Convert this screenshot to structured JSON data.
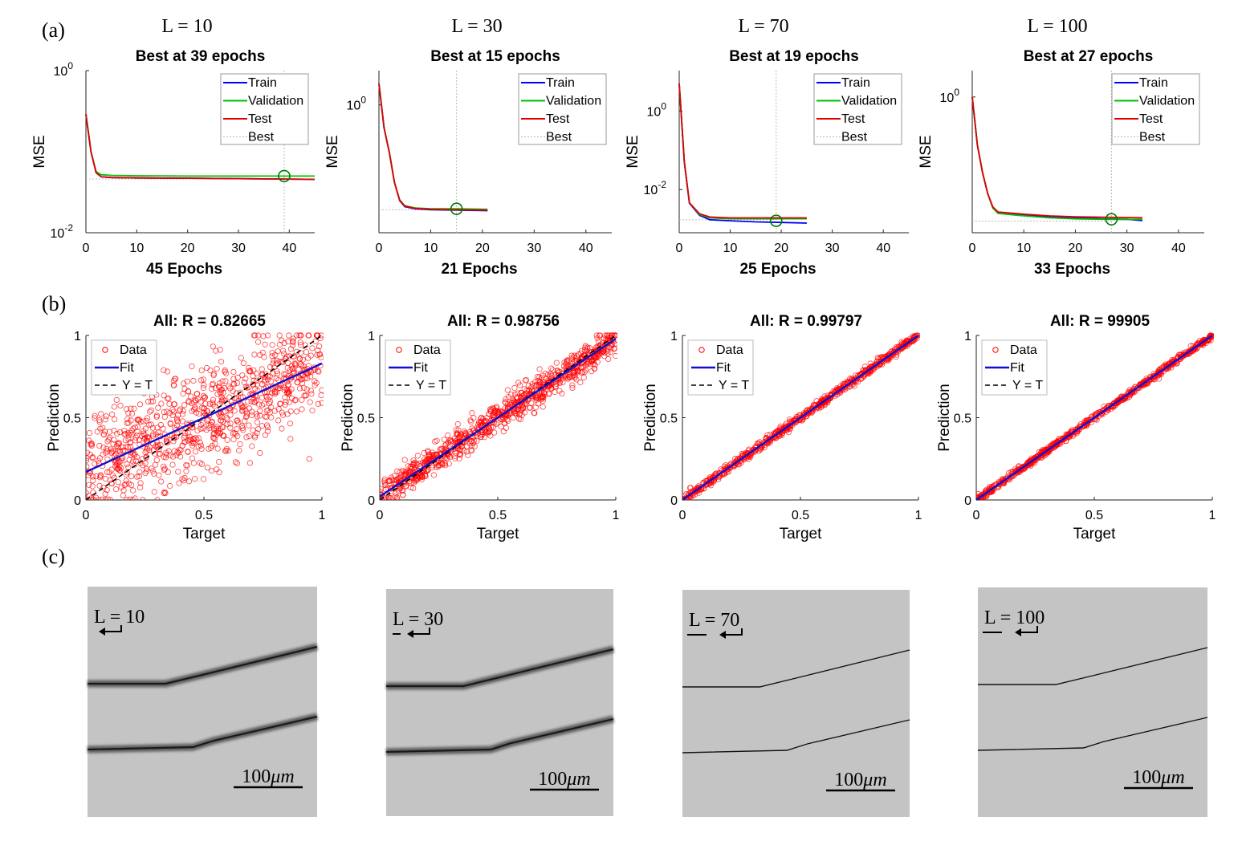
{
  "figure": {
    "panel_labels": [
      "(a)",
      "(b)",
      "(c)"
    ]
  },
  "colors": {
    "train": "#0000ff",
    "validation": "#00c000",
    "test": "#e00000",
    "best": "#bbbbbb",
    "best_marker": "#007a00",
    "scatter": "#ff0000",
    "fit": "#1010d0",
    "yt": "#000000",
    "micro_bg": "#c4c4c4",
    "crack": "#111111"
  },
  "columns": [
    {
      "header": "L = 10"
    },
    {
      "header": "L = 30"
    },
    {
      "header": "L = 70"
    },
    {
      "header": "L = 100"
    }
  ],
  "chart_data": [
    {
      "type": "line",
      "id": "mse-L10",
      "title": "Best at 39 epochs",
      "xlabel": "45 Epochs",
      "ylabel": "MSE",
      "yscale": "log",
      "xlim": [
        0,
        45
      ],
      "ylim_log10": [
        -2,
        0
      ],
      "xticks": [
        "0",
        "10",
        "20",
        "30",
        "40"
      ],
      "yticks": [
        {
          "base": "10",
          "exp": "0",
          "log": 0
        },
        {
          "base": "10",
          "exp": "-2",
          "log": -2
        }
      ],
      "legend": [
        "Train",
        "Validation",
        "Test",
        "Best"
      ],
      "best_epoch": 39,
      "best_mse": 0.05,
      "best_line": [
        0.046,
        0.046
      ],
      "series": [
        {
          "name": "Train",
          "x": [
            0,
            1,
            2,
            3,
            5,
            10,
            20,
            30,
            45
          ],
          "y": [
            0.29,
            0.1,
            0.055,
            0.049,
            0.048,
            0.0475,
            0.047,
            0.0465,
            0.0455
          ]
        },
        {
          "name": "Validation",
          "x": [
            0,
            1,
            2,
            3,
            5,
            10,
            20,
            30,
            45
          ],
          "y": [
            0.29,
            0.1,
            0.057,
            0.052,
            0.051,
            0.0505,
            0.05,
            0.05,
            0.05
          ]
        },
        {
          "name": "Test",
          "x": [
            0,
            1,
            2,
            3,
            5,
            10,
            20,
            30,
            45
          ],
          "y": [
            0.29,
            0.1,
            0.055,
            0.049,
            0.048,
            0.0475,
            0.047,
            0.0465,
            0.0455
          ]
        }
      ]
    },
    {
      "type": "line",
      "id": "mse-L30",
      "title": "Best at 15 epochs",
      "xlabel": "21 Epochs",
      "ylabel": "MSE",
      "yscale": "log",
      "xlim": [
        0,
        45
      ],
      "ylim_log10": [
        -1.23,
        0.33
      ],
      "xticks": [
        "0",
        "10",
        "20",
        "30",
        "40"
      ],
      "yticks": [
        {
          "base": "10",
          "exp": "0",
          "log": 0
        }
      ],
      "legend": [
        "Train",
        "Validation",
        "Test",
        "Best"
      ],
      "best_epoch": 15,
      "best_mse": 0.1,
      "best_line": [
        0.098,
        0.098
      ],
      "series": [
        {
          "name": "Train",
          "x": [
            0,
            1,
            2,
            3,
            4,
            5,
            7,
            10,
            15,
            21
          ],
          "y": [
            1.6,
            0.6,
            0.35,
            0.18,
            0.12,
            0.105,
            0.1,
            0.098,
            0.097,
            0.096
          ]
        },
        {
          "name": "Validation",
          "x": [
            0,
            1,
            2,
            3,
            4,
            5,
            7,
            10,
            15,
            21
          ],
          "y": [
            1.6,
            0.6,
            0.35,
            0.18,
            0.122,
            0.107,
            0.102,
            0.1,
            0.1,
            0.099
          ]
        },
        {
          "name": "Test",
          "x": [
            0,
            1,
            2,
            3,
            4,
            5,
            7,
            10,
            15,
            21
          ],
          "y": [
            1.6,
            0.6,
            0.35,
            0.18,
            0.121,
            0.106,
            0.101,
            0.099,
            0.098,
            0.097
          ]
        }
      ]
    },
    {
      "type": "line",
      "id": "mse-L70",
      "title": "Best at 19 epochs",
      "xlabel": "25 Epochs",
      "ylabel": "MSE",
      "yscale": "log",
      "xlim": [
        0,
        45
      ],
      "ylim_log10": [
        -3.1,
        1.03
      ],
      "xticks": [
        "0",
        "10",
        "20",
        "30",
        "40"
      ],
      "yticks": [
        {
          "base": "10",
          "exp": "0",
          "log": 0
        },
        {
          "base": "10",
          "exp": "-2",
          "log": -2
        }
      ],
      "legend": [
        "Train",
        "Validation",
        "Test",
        "Best"
      ],
      "best_epoch": 19,
      "best_mse": 0.0016,
      "best_line": [
        0.0017,
        0.0017
      ],
      "series": [
        {
          "name": "Train",
          "x": [
            0,
            0.5,
            1,
            2,
            4,
            6,
            10,
            15,
            20,
            25
          ],
          "y": [
            5,
            0.5,
            0.05,
            0.0045,
            0.0022,
            0.0017,
            0.0016,
            0.0015,
            0.00145,
            0.0014
          ]
        },
        {
          "name": "Validation",
          "x": [
            0,
            0.5,
            1,
            2,
            4,
            6,
            10,
            15,
            20,
            25
          ],
          "y": [
            5,
            0.5,
            0.05,
            0.0046,
            0.0023,
            0.0019,
            0.0018,
            0.0018,
            0.0018,
            0.0018
          ]
        },
        {
          "name": "Test",
          "x": [
            0,
            0.5,
            1,
            2,
            4,
            6,
            10,
            15,
            20,
            25
          ],
          "y": [
            5,
            0.5,
            0.05,
            0.0046,
            0.0024,
            0.002,
            0.0019,
            0.0019,
            0.0019,
            0.0019
          ]
        }
      ]
    },
    {
      "type": "line",
      "id": "mse-L100",
      "title": "Best at 27 epochs",
      "xlabel": "33 Epochs",
      "ylabel": "MSE",
      "yscale": "log",
      "xlim": [
        0,
        45
      ],
      "ylim_log10": [
        -3.45,
        0.67
      ],
      "xticks": [
        "0",
        "10",
        "20",
        "30",
        "40"
      ],
      "yticks": [
        {
          "base": "10",
          "exp": "0",
          "log": 0
        }
      ],
      "legend": [
        "Train",
        "Validation",
        "Test",
        "Best"
      ],
      "best_epoch": 27,
      "best_mse": 0.00078,
      "best_line": [
        0.0007,
        0.0007
      ],
      "series": [
        {
          "name": "Train",
          "x": [
            0,
            1,
            2,
            3,
            4,
            5,
            10,
            15,
            20,
            25,
            30,
            33
          ],
          "y": [
            1.0,
            0.06,
            0.012,
            0.0035,
            0.0015,
            0.00115,
            0.001,
            0.0009,
            0.00085,
            0.0008,
            0.00078,
            0.00072
          ]
        },
        {
          "name": "Validation",
          "x": [
            0,
            1,
            2,
            3,
            4,
            5,
            10,
            15,
            20,
            25,
            30,
            33
          ],
          "y": [
            1.0,
            0.06,
            0.012,
            0.0035,
            0.0015,
            0.0011,
            0.00095,
            0.00085,
            0.0008,
            0.00078,
            0.00077,
            0.00078
          ]
        },
        {
          "name": "Test",
          "x": [
            0,
            1,
            2,
            3,
            4,
            5,
            10,
            15,
            20,
            25,
            30,
            33
          ],
          "y": [
            1.0,
            0.06,
            0.012,
            0.0035,
            0.0016,
            0.0012,
            0.00105,
            0.00095,
            0.0009,
            0.00088,
            0.00086,
            0.00085
          ]
        }
      ]
    },
    {
      "type": "scatter",
      "id": "reg-L10",
      "title": "All: R = 0.82665",
      "xlabel": "Target",
      "ylabel": "Prediction",
      "xlim": [
        0,
        1
      ],
      "ylim": [
        0,
        1
      ],
      "xticks": [
        "0",
        "0.5",
        "1"
      ],
      "yticks": [
        "0",
        "0.5",
        "1"
      ],
      "legend": [
        "Data",
        "Fit",
        "Y = T"
      ],
      "fit": {
        "slope": 0.66,
        "intercept": 0.17
      },
      "noise_sd": 0.17,
      "points": 900
    },
    {
      "type": "scatter",
      "id": "reg-L30",
      "title": "All: R = 0.98756",
      "xlabel": "Target",
      "ylabel": "Prediction",
      "xlim": [
        0,
        1
      ],
      "ylim": [
        0,
        1
      ],
      "xticks": [
        "0",
        "0.5",
        "1"
      ],
      "yticks": [
        "0",
        "0.5",
        "1"
      ],
      "legend": [
        "Data",
        "Fit",
        "Y = T"
      ],
      "fit": {
        "slope": 0.96,
        "intercept": 0.02
      },
      "noise_sd": 0.045,
      "points": 900
    },
    {
      "type": "scatter",
      "id": "reg-L70",
      "title": "All: R = 0.99797",
      "xlabel": "Target",
      "ylabel": "Prediction",
      "xlim": [
        0,
        1
      ],
      "ylim": [
        0,
        1
      ],
      "xticks": [
        "0",
        "0.5",
        "1"
      ],
      "yticks": [
        "0",
        "0.5",
        "1"
      ],
      "legend": [
        "Data",
        "Fit",
        "Y = T"
      ],
      "fit": {
        "slope": 1.0,
        "intercept": 0.0
      },
      "noise_sd": 0.014,
      "points": 700
    },
    {
      "type": "scatter",
      "id": "reg-L100",
      "title": "All: R = 99905",
      "xlabel": "Target",
      "ylabel": "Prediction",
      "xlim": [
        0,
        1
      ],
      "ylim": [
        0,
        1
      ],
      "xticks": [
        "0",
        "0.5",
        "1"
      ],
      "yticks": [
        "0",
        "0.5",
        "1"
      ],
      "legend": [
        "Data",
        "Fit",
        "Y = T"
      ],
      "fit": {
        "slope": 1.0,
        "intercept": 0.0
      },
      "noise_sd": 0.01,
      "points": 700
    }
  ],
  "micrographs": [
    {
      "label": "L = 10",
      "scale_value": "100",
      "scale_unit": "μm",
      "style": "thick"
    },
    {
      "label": "L = 30",
      "scale_value": "100",
      "scale_unit": "μm",
      "style": "thick"
    },
    {
      "label": "L = 70",
      "scale_value": "100",
      "scale_unit": "μm",
      "style": "thin"
    },
    {
      "label": "L = 100",
      "scale_value": "100",
      "scale_unit": "μm",
      "style": "thin"
    }
  ]
}
